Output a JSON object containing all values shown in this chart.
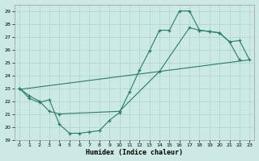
{
  "xlabel": "Humidex (Indice chaleur)",
  "bg_color": "#cce9e5",
  "grid_color": "#aad4cf",
  "line_color": "#2d7a6f",
  "xlim": [
    -0.5,
    23.5
  ],
  "ylim": [
    19,
    29.5
  ],
  "xticks": [
    0,
    1,
    2,
    3,
    4,
    5,
    6,
    7,
    8,
    9,
    10,
    11,
    12,
    13,
    14,
    15,
    16,
    17,
    18,
    19,
    20,
    21,
    22,
    23
  ],
  "yticks": [
    19,
    20,
    21,
    22,
    23,
    24,
    25,
    26,
    27,
    28,
    29
  ],
  "line1_x": [
    0,
    1,
    2,
    3,
    4,
    5,
    6,
    7,
    8,
    9,
    10,
    11,
    12,
    13,
    14,
    15,
    16,
    17,
    18,
    19,
    20,
    21,
    22
  ],
  "line1_y": [
    23.0,
    22.2,
    21.9,
    22.1,
    20.2,
    19.5,
    19.5,
    19.6,
    19.7,
    20.5,
    21.1,
    22.7,
    24.4,
    25.9,
    27.5,
    27.5,
    29.0,
    29.0,
    27.5,
    27.4,
    27.3,
    26.6,
    25.2
  ],
  "line2_x": [
    0,
    1,
    2,
    3,
    4,
    10,
    14,
    17,
    18,
    19,
    20,
    21,
    22,
    23
  ],
  "line2_y": [
    23.0,
    22.4,
    22.0,
    21.2,
    21.0,
    21.2,
    24.3,
    27.7,
    27.5,
    27.4,
    27.3,
    26.6,
    26.7,
    25.2
  ],
  "line3_x": [
    0,
    23
  ],
  "line3_y": [
    22.9,
    25.2
  ]
}
